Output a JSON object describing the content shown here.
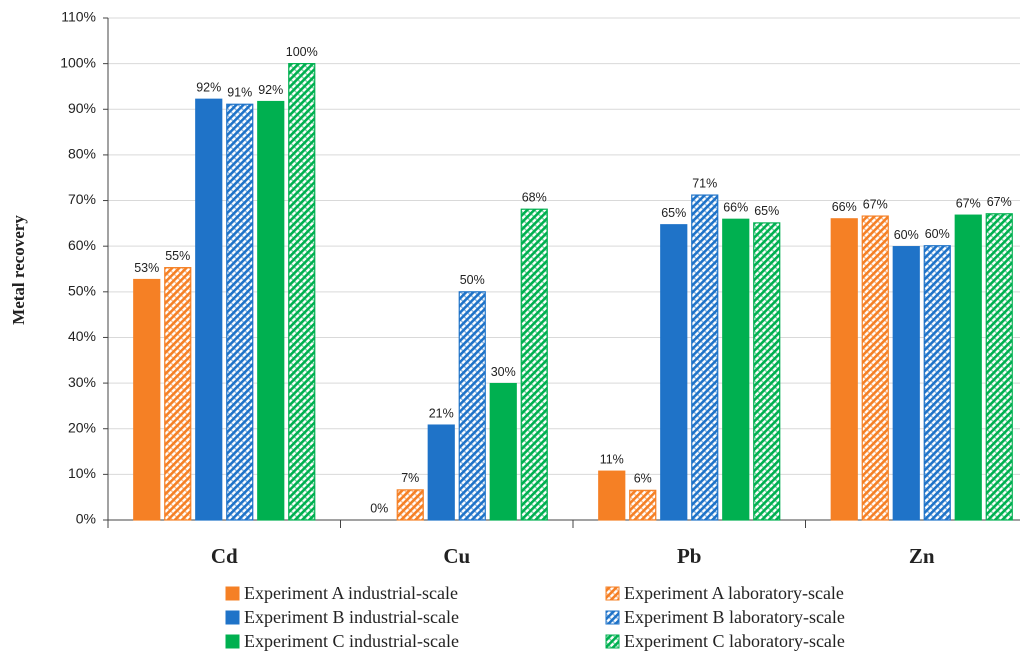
{
  "chart_data": {
    "type": "bar",
    "y_label": "Metal recovery",
    "categories": [
      "Cd",
      "Cu",
      "Pb",
      "Zn"
    ],
    "ylim": [
      0,
      110
    ],
    "yticks": [
      {
        "value": 0,
        "label": "0%"
      },
      {
        "value": 10,
        "label": "10%"
      },
      {
        "value": 20,
        "label": "20%"
      },
      {
        "value": 30,
        "label": "30%"
      },
      {
        "value": 40,
        "label": "40%"
      },
      {
        "value": 50,
        "label": "50%"
      },
      {
        "value": 60,
        "label": "60%"
      },
      {
        "value": 70,
        "label": "70%"
      },
      {
        "value": 80,
        "label": "80%"
      },
      {
        "value": 90,
        "label": "90%"
      },
      {
        "value": 100,
        "label": "100%"
      },
      {
        "value": 110,
        "label": "110%"
      }
    ],
    "grid": true,
    "series": [
      {
        "name": "Experiment A industrial-scale",
        "color": "#f58025",
        "hatched": false,
        "values": [
          52.7,
          0,
          10.7,
          66
        ],
        "value_labels": [
          "53%",
          "0%",
          "11%",
          "66%"
        ]
      },
      {
        "name": "Experiment A laboratory-scale",
        "color": "#f58025",
        "hatched": true,
        "values": [
          55.3,
          6.6,
          6.5,
          66.6
        ],
        "value_labels": [
          "55%",
          "7%",
          "6%",
          "67%"
        ]
      },
      {
        "name": "Experiment B industrial-scale",
        "color": "#1f73c8",
        "hatched": false,
        "values": [
          92.2,
          20.8,
          64.7,
          59.9
        ],
        "value_labels": [
          "92%",
          "21%",
          "65%",
          "60%"
        ]
      },
      {
        "name": "Experiment B laboratory-scale",
        "color": "#1f73c8",
        "hatched": true,
        "values": [
          91.1,
          50,
          71.2,
          60.1
        ],
        "value_labels": [
          "91%",
          "50%",
          "71%",
          "60%"
        ]
      },
      {
        "name": "Experiment C industrial-scale",
        "color": "#00b050",
        "hatched": false,
        "values": [
          91.7,
          29.9,
          65.9,
          66.8
        ],
        "value_labels": [
          "92%",
          "30%",
          "66%",
          "67%"
        ]
      },
      {
        "name": "Experiment C laboratory-scale",
        "color": "#00b050",
        "hatched": true,
        "values": [
          100,
          68.1,
          65.1,
          67.1
        ],
        "value_labels": [
          "100%",
          "68%",
          "65%",
          "67%"
        ]
      }
    ]
  }
}
